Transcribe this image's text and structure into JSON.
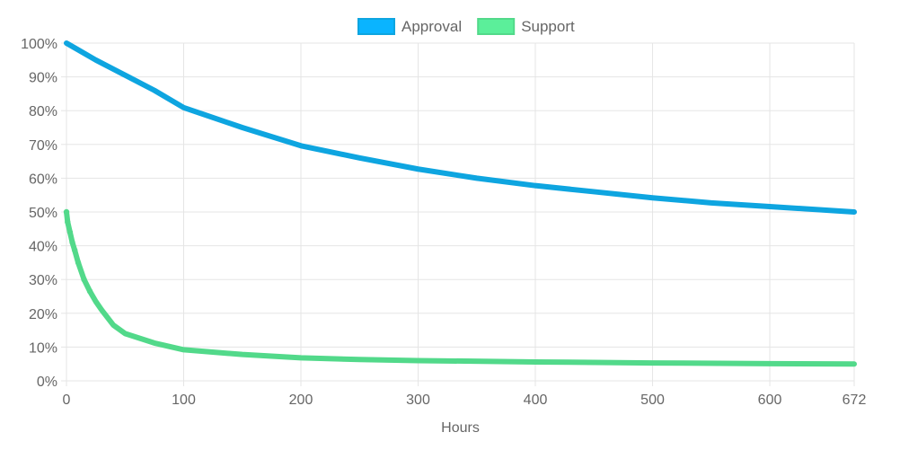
{
  "chart_data": {
    "type": "line",
    "title": "",
    "xlabel": "Hours",
    "ylabel": "",
    "xlim": [
      0,
      672
    ],
    "ylim": [
      0,
      100
    ],
    "x_ticks": [
      0,
      100,
      200,
      300,
      400,
      500,
      600,
      672
    ],
    "x_tick_labels": [
      "0",
      "100",
      "200",
      "300",
      "400",
      "500",
      "600",
      "672"
    ],
    "y_ticks": [
      0,
      10,
      20,
      30,
      40,
      50,
      60,
      70,
      80,
      90,
      100
    ],
    "y_tick_labels": [
      "0%",
      "10%",
      "20%",
      "30%",
      "40%",
      "50%",
      "60%",
      "70%",
      "80%",
      "90%",
      "100%"
    ],
    "grid": true,
    "legend_position": "top-center",
    "series": [
      {
        "name": "Approval",
        "color": "#0ea5e0",
        "legend_fill": "#0ab4ff",
        "x": [
          0,
          10,
          25,
          50,
          75,
          100,
          150,
          200,
          250,
          300,
          350,
          400,
          450,
          500,
          550,
          600,
          672
        ],
        "values": [
          100,
          98.0,
          95.0,
          90.5,
          86.0,
          80.9,
          75.0,
          69.6,
          66.0,
          62.7,
          60.0,
          57.8,
          56.0,
          54.2,
          52.7,
          51.6,
          50.0
        ]
      },
      {
        "name": "Support",
        "color": "#52d98a",
        "legend_fill": "#5bef9a",
        "x": [
          0,
          1,
          3,
          5,
          7,
          10,
          15,
          20,
          25,
          30,
          40,
          50,
          75,
          100,
          150,
          200,
          250,
          300,
          400,
          500,
          600,
          672
        ],
        "values": [
          50,
          47.0,
          44.0,
          41.0,
          38.7,
          35.0,
          30.0,
          26.5,
          23.5,
          21.0,
          16.5,
          14.0,
          11.2,
          9.2,
          7.8,
          6.8,
          6.3,
          6.0,
          5.6,
          5.3,
          5.1,
          5.0
        ]
      }
    ]
  }
}
